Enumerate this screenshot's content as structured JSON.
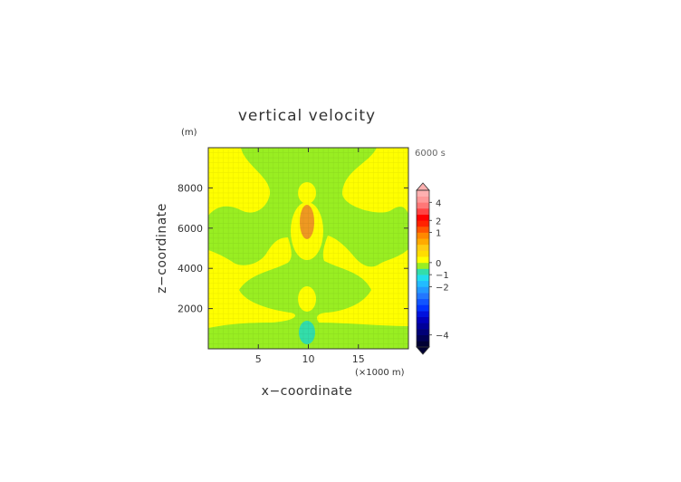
{
  "chart_data": {
    "type": "heatmap",
    "title": "vertical velocity",
    "time_label": "6000 s",
    "xlabel": "x−coordinate",
    "ylabel": "z−coordinate",
    "x_unit": "(×1000 m)",
    "y_unit": "(m)",
    "xlim": [
      0,
      20000
    ],
    "ylim": [
      0,
      10000
    ],
    "x_ticks": [
      {
        "value": 5000,
        "label": "5"
      },
      {
        "value": 10000,
        "label": "10"
      },
      {
        "value": 15000,
        "label": "15"
      }
    ],
    "y_ticks": [
      {
        "value": 2000,
        "label": "2000"
      },
      {
        "value": 4000,
        "label": "4000"
      },
      {
        "value": 6000,
        "label": "6000"
      },
      {
        "value": 8000,
        "label": "8000"
      }
    ],
    "field_regions": [
      {
        "level": "0 to 0.5",
        "color": "#ffff00",
        "description": "background"
      },
      {
        "level": "-0.5 to 0",
        "color": "#99ee22",
        "description": "main negative band"
      },
      {
        "level": "1.5 to 2",
        "color": "#ee9922",
        "center": [
          10000,
          6300
        ]
      },
      {
        "level": "-1 to -0.5",
        "color": "#33ddaa",
        "center": [
          10000,
          800
        ]
      }
    ],
    "colorbar": {
      "levels": [
        {
          "label": "4",
          "value": 4
        },
        {
          "label": "2",
          "value": 2
        },
        {
          "label": "1",
          "value": 1
        },
        {
          "label": "0",
          "value": 0
        },
        {
          "label": "−1",
          "value": -1
        },
        {
          "label": "−2",
          "value": -2
        },
        {
          "label": "−4",
          "value": -4
        }
      ],
      "colors": [
        "#000033",
        "#000055",
        "#000077",
        "#000099",
        "#0000bb",
        "#0011dd",
        "#0033ff",
        "#1155ff",
        "#2277ff",
        "#2299ff",
        "#22bbff",
        "#22ddee",
        "#33ddaa",
        "#99ee22",
        "#ffff00",
        "#ffdd00",
        "#ffcc11",
        "#ffaa00",
        "#ff8800",
        "#ff5500",
        "#ff2200",
        "#ff0000",
        "#ff4444",
        "#ff7777",
        "#ff9999",
        "#ffb0b0"
      ]
    }
  }
}
